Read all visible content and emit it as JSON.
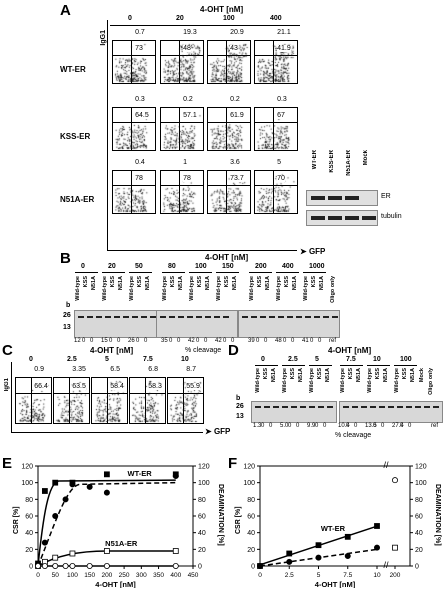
{
  "panels": {
    "A": {
      "letter": "A",
      "header": "4-OHT [nM]",
      "concentrations": [
        "0",
        "20",
        "100",
        "400"
      ],
      "rows": [
        {
          "name": "WT-ER",
          "upper": [
            "0.7",
            "19.3",
            "20.9",
            "21.1"
          ],
          "lower": [
            "73",
            "48",
            "43",
            "41.9"
          ]
        },
        {
          "name": "KSS-ER",
          "upper": [
            "0.3",
            "0.2",
            "0.2",
            "0.3"
          ],
          "lower": [
            "64.5",
            "57.1",
            "61.9",
            "67"
          ]
        },
        {
          "name": "N51A-ER",
          "upper": [
            "0.4",
            "1",
            "3.6",
            "5"
          ],
          "lower": [
            "78",
            "78",
            "73.7",
            "70"
          ]
        }
      ],
      "y_axis": "IgG1",
      "x_axis": "GFP",
      "western_lanes": [
        "WT-ER",
        "KSS-ER",
        "N51A-ER",
        "Mock"
      ],
      "western_labels": [
        "ER",
        "tubulin"
      ]
    },
    "B": {
      "letter": "B",
      "header": "4-OHT [nM]",
      "concentrations": [
        "0",
        "20",
        "50",
        "80",
        "100",
        "150",
        "200",
        "400",
        "1000",
        "Oligo only"
      ],
      "lanes": [
        "Wild-type",
        "KSS",
        "N51A"
      ],
      "marker_b": "b",
      "markers": [
        "26",
        "13"
      ],
      "cleavage": [
        "12",
        "0",
        "0",
        "15",
        "0",
        "0",
        "26",
        "0",
        "0",
        "35",
        "0",
        "0",
        "42",
        "0",
        "0",
        "42",
        "0",
        "0",
        "39",
        "0",
        "0",
        "48",
        "0",
        "0",
        "41",
        "0",
        "0",
        "ref"
      ],
      "xlabel": "% cleavage"
    },
    "C": {
      "letter": "C",
      "header": "4-OHT [nM]",
      "concentrations": [
        "0",
        "2.5",
        "5",
        "7.5",
        "10"
      ],
      "upper": [
        "0.9",
        "3.35",
        "6.5",
        "6.8",
        "8.7"
      ],
      "lower": [
        "66.4",
        "63.5",
        "58.4",
        "58.3",
        "55.9"
      ],
      "y_axis": "IgG1",
      "x_axis": "GFP"
    },
    "D": {
      "letter": "D",
      "header": "4-OHT [nM]",
      "concentrations": [
        "0",
        "2.5",
        "5",
        "7.5",
        "10",
        "100"
      ],
      "lanes": [
        "Wild-type",
        "KSS",
        "N51A"
      ],
      "extra_lanes": [
        "Mock",
        "Oligo only"
      ],
      "marker_b": "b",
      "markers": [
        "26",
        "13"
      ],
      "cleavage": [
        "1.3",
        "0",
        "0",
        "5.0",
        "0",
        "0",
        "9.9",
        "0",
        "0",
        "10.4",
        "0",
        "0",
        "13.5",
        "0",
        "0",
        "27.4",
        "0",
        "0",
        "ref"
      ],
      "xlabel": "% cleavage"
    },
    "E": {
      "letter": "E",
      "ylabel_left": "CSR [%]",
      "ylabel_right": "DEAMINATION [%]",
      "xlabel": "4-OHT [nM]",
      "series_labels": [
        "WT-ER",
        "N51A-ER"
      ]
    },
    "F": {
      "letter": "F",
      "ylabel_left": "CSR [%]",
      "ylabel_right": "DEAMINATION [%]",
      "xlabel": "4-OHT [nM]",
      "series_labels": [
        "WT-ER"
      ]
    }
  },
  "chart_data": [
    {
      "type": "line",
      "panel": "E",
      "x_ticks": [
        "0",
        "50",
        "100",
        "150",
        "200",
        "250",
        "300",
        "350",
        "400",
        "450"
      ],
      "y_ticks_left": [
        "0",
        "20",
        "40",
        "60",
        "80",
        "100",
        "120"
      ],
      "y_ticks_right": [
        "0",
        "20",
        "40",
        "60",
        "80",
        "100",
        "120"
      ],
      "xlim": [
        0,
        450
      ],
      "ylim": [
        0,
        120
      ],
      "series": [
        {
          "name": "WT-ER",
          "marker": "filled-square",
          "x": [
            0,
            20,
            50,
            100,
            200,
            400
          ],
          "y": [
            3,
            90,
            100,
            100,
            110,
            110
          ]
        },
        {
          "marker": "filled-circle",
          "x": [
            0,
            20,
            50,
            80,
            100,
            150,
            200,
            400
          ],
          "y": [
            0,
            28,
            60,
            80,
            98,
            95,
            88,
            108
          ]
        },
        {
          "name": "N51A-ER",
          "marker": "open-square",
          "x": [
            0,
            20,
            50,
            100,
            200,
            400
          ],
          "y": [
            0,
            5,
            10,
            15,
            18,
            18
          ]
        },
        {
          "marker": "open-circle",
          "x": [
            0,
            20,
            50,
            80,
            100,
            150,
            200,
            400
          ],
          "y": [
            0,
            0,
            0,
            0,
            0,
            0,
            0,
            0
          ]
        }
      ]
    },
    {
      "type": "line",
      "panel": "F",
      "x_ticks": [
        "0",
        "2.5",
        "5",
        "7.5",
        "10",
        "200"
      ],
      "y_ticks_left": [
        "0",
        "20",
        "40",
        "60",
        "80",
        "100",
        "120"
      ],
      "y_ticks_right": [
        "0",
        "20",
        "40",
        "60",
        "80",
        "100",
        "120"
      ],
      "ylim": [
        0,
        120
      ],
      "series": [
        {
          "name": "WT-ER",
          "marker": "filled-square",
          "x": [
            0,
            2.5,
            5,
            7.5,
            10
          ],
          "y": [
            0,
            15,
            25,
            35,
            48
          ]
        },
        {
          "marker": "filled-circle",
          "x": [
            0,
            2.5,
            5,
            7.5,
            10
          ],
          "y": [
            0,
            5,
            10,
            12,
            22
          ]
        },
        {
          "marker": "open-square",
          "x": [
            200
          ],
          "y": [
            22
          ]
        },
        {
          "marker": "open-circle",
          "x": [
            200
          ],
          "y": [
            103
          ]
        }
      ]
    }
  ]
}
